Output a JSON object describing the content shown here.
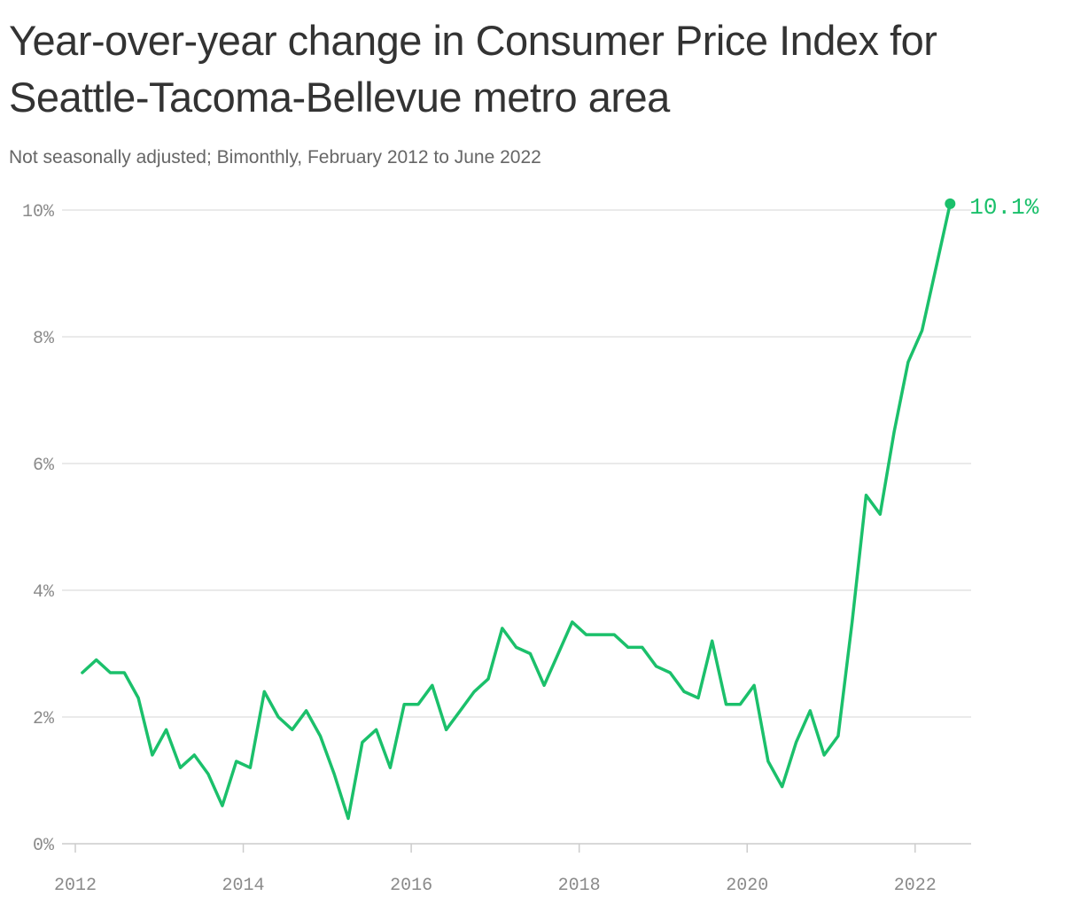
{
  "colors": {
    "line": "#1bc06b",
    "grid": "#dddddd",
    "axis": "#cccccc",
    "title": "#333333",
    "subtitle": "#666666",
    "tick": "#8a8a8a"
  },
  "chart_data": {
    "type": "line",
    "title": "Year-over-year change in Consumer Price Index for Seattle-Tacoma-Bellevue metro area",
    "subtitle": "Not seasonally adjusted; Bimonthly, February 2012 to June 2022",
    "xlabel": "",
    "ylabel": "",
    "ylim": [
      0,
      10
    ],
    "xlim": [
      2012,
      2022.667
    ],
    "grid": true,
    "legend": "none",
    "yticks": [
      0,
      2,
      4,
      6,
      8,
      10
    ],
    "ytick_labels": [
      "0%",
      "2%",
      "4%",
      "6%",
      "8%",
      "10%"
    ],
    "xticks": [
      2012,
      2014,
      2016,
      2018,
      2020,
      2022
    ],
    "xtick_labels": [
      "2012",
      "2014",
      "2016",
      "2018",
      "2020",
      "2022"
    ],
    "end_label": "10.1%",
    "series": [
      {
        "x": [
          2012.083,
          2012.25,
          2012.417,
          2012.583,
          2012.75,
          2012.917,
          2013.083,
          2013.25,
          2013.417,
          2013.583,
          2013.75,
          2013.917,
          2014.083,
          2014.25,
          2014.417,
          2014.583,
          2014.75,
          2014.917,
          2015.083,
          2015.25,
          2015.417,
          2015.583,
          2015.75,
          2015.917,
          2016.083,
          2016.25,
          2016.417,
          2016.583,
          2016.75,
          2016.917,
          2017.083,
          2017.25,
          2017.417,
          2017.583,
          2017.75,
          2017.917,
          2018.083,
          2018.25,
          2018.417,
          2018.583,
          2018.75,
          2018.917,
          2019.083,
          2019.25,
          2019.417,
          2019.583,
          2019.75,
          2019.917,
          2020.083,
          2020.25,
          2020.417,
          2020.583,
          2020.75,
          2020.917,
          2021.083,
          2021.25,
          2021.417,
          2021.583,
          2021.75,
          2021.917,
          2022.083,
          2022.25,
          2022.417
        ],
        "values": [
          2.7,
          2.9,
          2.7,
          2.7,
          2.3,
          1.4,
          1.8,
          1.2,
          1.4,
          1.1,
          0.6,
          1.3,
          1.2,
          2.4,
          2.0,
          1.8,
          2.1,
          1.7,
          1.1,
          0.4,
          1.6,
          1.8,
          1.2,
          2.2,
          2.2,
          2.5,
          1.8,
          2.1,
          2.4,
          2.6,
          3.4,
          3.1,
          3.0,
          2.5,
          3.0,
          3.5,
          3.3,
          3.3,
          3.3,
          3.1,
          3.1,
          2.8,
          2.7,
          2.4,
          2.3,
          3.2,
          2.2,
          2.2,
          2.5,
          1.3,
          0.9,
          1.6,
          2.1,
          1.4,
          1.7,
          3.5,
          5.5,
          5.2,
          6.5,
          7.6,
          8.1,
          9.1,
          10.1
        ]
      }
    ]
  }
}
